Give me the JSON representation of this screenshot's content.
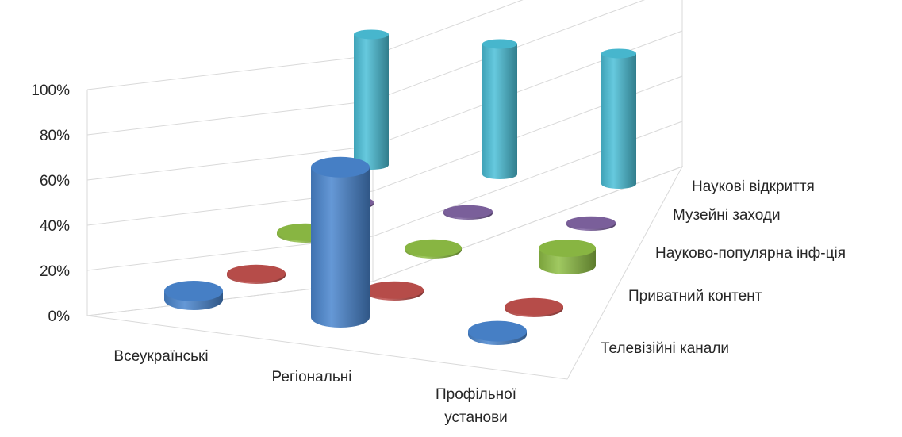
{
  "chart_data": {
    "type": "bar",
    "variant": "3d-cylinder",
    "title": "",
    "categories": [
      "Всеукраїнські",
      "Регіональні",
      "Профільної установи"
    ],
    "category_labels": [
      [
        "Всеукраїнські"
      ],
      [
        "Регіональні"
      ],
      [
        "Профільної",
        "установи"
      ]
    ],
    "y_ticks": [
      "0%",
      "20%",
      "40%",
      "60%",
      "80%",
      "100%"
    ],
    "ylim": [
      0,
      100
    ],
    "grid": true,
    "legend": "depth-axis",
    "series": [
      {
        "name": "Телевізійні канали",
        "color": "#4a86cf",
        "values": [
          5,
          86,
          2
        ]
      },
      {
        "name": "Приватний контент",
        "color": "#c0504d",
        "values": [
          1,
          1,
          1
        ]
      },
      {
        "name": "Науково-популярна інф-ція",
        "color": "#8fbf45",
        "values": [
          1,
          1,
          10
        ]
      },
      {
        "name": "Музейні заходи",
        "color": "#8064a2",
        "values": [
          0,
          1,
          1
        ]
      },
      {
        "name": "Наукові відкриття",
        "color": "#4bc0d8",
        "values": [
          88,
          88,
          88
        ]
      }
    ]
  }
}
